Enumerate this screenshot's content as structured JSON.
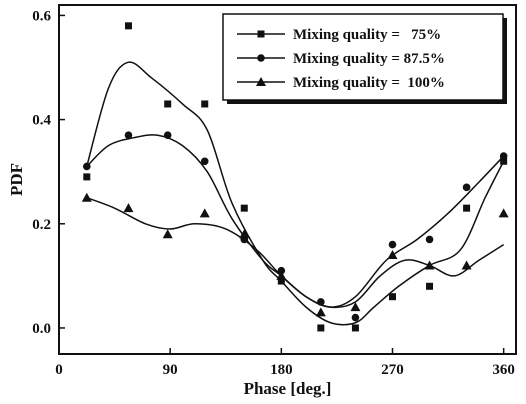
{
  "chart_data": {
    "type": "scatter",
    "title": "",
    "xlabel": "Phase [deg.]",
    "ylabel": "PDF",
    "xlim": [
      0,
      370
    ],
    "ylim": [
      -0.05,
      0.62
    ],
    "xticks": [
      0,
      90,
      180,
      270,
      360
    ],
    "xtick_labels": [
      "0",
      "90",
      "180",
      "270",
      "360"
    ],
    "yticks": [
      0.0,
      0.2,
      0.4,
      0.6
    ],
    "ytick_labels": [
      "0.0",
      "0.2",
      "0.4",
      "0.6"
    ],
    "legend_position": "top-right",
    "series": [
      {
        "name": "Mixing quality =   75%",
        "marker": "square",
        "x": [
          22.5,
          56.25,
          88,
          118,
          150,
          180,
          212,
          240,
          270,
          300,
          330,
          360
        ],
        "y": [
          0.29,
          0.58,
          0.43,
          0.43,
          0.23,
          0.09,
          0.0,
          0.0,
          0.06,
          0.08,
          0.23,
          0.32
        ],
        "curve": [
          [
            22.5,
            0.31
          ],
          [
            40,
            0.46
          ],
          [
            56,
            0.51
          ],
          [
            75,
            0.48
          ],
          [
            100,
            0.43
          ],
          [
            120,
            0.38
          ],
          [
            140,
            0.24
          ],
          [
            165,
            0.13
          ],
          [
            180,
            0.09
          ],
          [
            200,
            0.04
          ],
          [
            220,
            0.01
          ],
          [
            240,
            0.01
          ],
          [
            255,
            0.04
          ],
          [
            275,
            0.08
          ],
          [
            300,
            0.12
          ],
          [
            325,
            0.15
          ],
          [
            345,
            0.25
          ],
          [
            360,
            0.32
          ]
        ]
      },
      {
        "name": "Mixing quality = 87.5%",
        "marker": "circle",
        "x": [
          22.5,
          56.25,
          88,
          118,
          150,
          180,
          212,
          240,
          270,
          300,
          330,
          360
        ],
        "y": [
          0.31,
          0.37,
          0.37,
          0.32,
          0.17,
          0.11,
          0.05,
          0.02,
          0.16,
          0.17,
          0.27,
          0.33
        ],
        "curve": [
          [
            22.5,
            0.31
          ],
          [
            40,
            0.35
          ],
          [
            60,
            0.365
          ],
          [
            80,
            0.37
          ],
          [
            100,
            0.35
          ],
          [
            120,
            0.3
          ],
          [
            140,
            0.21
          ],
          [
            165,
            0.13
          ],
          [
            180,
            0.1
          ],
          [
            200,
            0.06
          ],
          [
            220,
            0.04
          ],
          [
            240,
            0.06
          ],
          [
            265,
            0.13
          ],
          [
            290,
            0.17
          ],
          [
            315,
            0.22
          ],
          [
            340,
            0.28
          ],
          [
            360,
            0.33
          ]
        ]
      },
      {
        "name": "Mixing quality =  100%",
        "marker": "triangle",
        "x": [
          22.5,
          56.25,
          88,
          118,
          150,
          180,
          212,
          240,
          270,
          300,
          330,
          360
        ],
        "y": [
          0.25,
          0.23,
          0.18,
          0.22,
          0.18,
          0.1,
          0.03,
          0.04,
          0.14,
          0.12,
          0.12,
          0.22
        ],
        "curve": [
          [
            22.5,
            0.25
          ],
          [
            45,
            0.23
          ],
          [
            70,
            0.2
          ],
          [
            90,
            0.19
          ],
          [
            110,
            0.2
          ],
          [
            135,
            0.19
          ],
          [
            160,
            0.15
          ],
          [
            180,
            0.1
          ],
          [
            200,
            0.06
          ],
          [
            220,
            0.04
          ],
          [
            240,
            0.05
          ],
          [
            260,
            0.1
          ],
          [
            280,
            0.13
          ],
          [
            300,
            0.12
          ],
          [
            320,
            0.1
          ],
          [
            340,
            0.13
          ],
          [
            360,
            0.16
          ]
        ]
      }
    ]
  }
}
